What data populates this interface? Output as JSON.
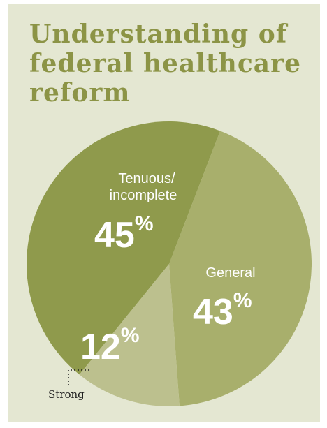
{
  "title": "Understanding of federal healthcare reform",
  "chart_data": {
    "type": "pie",
    "slices": [
      {
        "label_lines": [
          "Tenuous/",
          "incomplete"
        ],
        "value": 45,
        "display": "45",
        "color": "#8f9a4c"
      },
      {
        "label_lines": [
          "General"
        ],
        "value": 43,
        "display": "43",
        "color": "#a8af6c"
      },
      {
        "label_lines": [
          "Strong"
        ],
        "value": 12,
        "display": "12",
        "color": "#bcc08e"
      }
    ],
    "percent_sign": "%"
  }
}
